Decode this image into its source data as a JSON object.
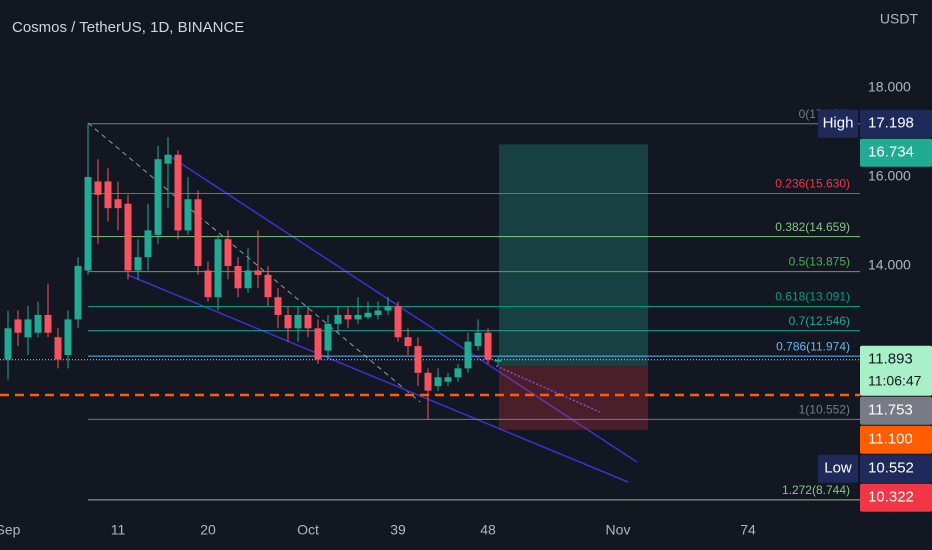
{
  "header": {
    "title": "Cosmos / TetherUS, 1D, BINANCE",
    "currency": "USDT"
  },
  "chart_data": {
    "type": "candlestick",
    "x": [
      0,
      1,
      2,
      3,
      4,
      5,
      6,
      7,
      8,
      9,
      10,
      11,
      12,
      13,
      14,
      15,
      16,
      17,
      18,
      19,
      20,
      21,
      22,
      23,
      24,
      25,
      26,
      27,
      28,
      29,
      30,
      31,
      32,
      33,
      34,
      35,
      36,
      37,
      38,
      39,
      40,
      41,
      42,
      43,
      44,
      45,
      46,
      47,
      48,
      49
    ],
    "open": [
      11.9,
      12.8,
      12.4,
      12.5,
      12.9,
      12.4,
      12.0,
      12.8,
      13.9,
      15.9,
      15.9,
      15.5,
      15.4,
      13.9,
      14.2,
      14.7,
      16.3,
      16.5,
      14.8,
      15.5,
      13.9,
      13.3,
      14.6,
      14.0,
      13.5,
      13.9,
      13.8,
      13.3,
      12.9,
      12.6,
      12.9,
      12.6,
      12.1,
      12.7,
      12.9,
      12.8,
      12.85,
      12.9,
      13.0,
      13.1,
      12.4,
      12.2,
      11.6,
      11.3,
      11.4,
      11.5,
      11.7,
      12.2,
      12.5,
      11.85
    ],
    "high": [
      13.0,
      13.0,
      13.1,
      13.2,
      13.6,
      12.6,
      13.0,
      14.2,
      17.198,
      16.4,
      16.2,
      15.9,
      15.6,
      14.6,
      15.4,
      16.7,
      16.9,
      16.6,
      16.0,
      15.7,
      14.1,
      14.7,
      14.8,
      14.2,
      14.4,
      14.8,
      14.0,
      13.5,
      13.1,
      13.1,
      13.1,
      12.8,
      12.9,
      13.1,
      13.1,
      13.3,
      13.2,
      13.2,
      13.3,
      13.2,
      12.6,
      12.4,
      11.7,
      11.7,
      11.6,
      11.8,
      12.5,
      12.8,
      12.6,
      11.95
    ],
    "low": [
      11.45,
      12.2,
      12.0,
      12.4,
      12.4,
      11.7,
      11.7,
      12.6,
      13.8,
      14.5,
      15.0,
      14.8,
      13.7,
      13.7,
      13.9,
      14.5,
      15.3,
      14.6,
      14.7,
      13.8,
      13.2,
      13.0,
      13.7,
      13.3,
      13.4,
      13.5,
      13.1,
      12.6,
      12.3,
      12.3,
      12.4,
      11.8,
      11.9,
      12.5,
      12.6,
      12.7,
      12.8,
      12.8,
      12.9,
      12.3,
      12.0,
      11.3,
      10.552,
      11.2,
      11.3,
      11.4,
      11.6,
      12.1,
      11.8,
      11.75
    ],
    "close": [
      12.6,
      12.5,
      12.8,
      12.9,
      12.5,
      11.9,
      12.8,
      14.0,
      16.0,
      15.6,
      15.3,
      15.3,
      13.9,
      14.2,
      14.8,
      16.4,
      16.5,
      14.8,
      15.5,
      14.0,
      13.3,
      14.6,
      14.0,
      13.5,
      13.9,
      13.8,
      13.3,
      12.9,
      12.6,
      12.9,
      12.6,
      11.9,
      12.7,
      12.9,
      12.8,
      12.9,
      12.95,
      13.0,
      13.1,
      12.4,
      12.2,
      11.6,
      11.2,
      11.5,
      11.5,
      11.7,
      12.3,
      12.5,
      11.9,
      11.893
    ],
    "up_color": "#22ab94",
    "down_color": "#f7525f",
    "xlim": [
      -0.8,
      85.2
    ],
    "xticks": [
      {
        "value": 0,
        "label": "Sep"
      },
      11,
      20,
      {
        "value": 30,
        "label": "Oct"
      },
      39,
      48,
      {
        "value": 61,
        "label": "Nov"
      },
      74
    ],
    "ylim": [
      8.337,
      19.978
    ],
    "yticks": [
      {
        "value": 18,
        "label": "18.000"
      },
      {
        "value": 16,
        "label": "16.000"
      },
      {
        "value": 14,
        "label": "14.000"
      }
    ],
    "grid": false,
    "fib_levels": [
      {
        "value": 17.198,
        "label": "0(17.198)",
        "color": "#787b86"
      },
      {
        "value": 15.63,
        "label": "0.236(15.630)",
        "color": "#f23645"
      },
      {
        "value": 14.659,
        "label": "0.382(14.659)",
        "color": "#81c784"
      },
      {
        "value": 13.875,
        "label": "0.5(13.875)",
        "color": "#4caf50"
      },
      {
        "value": 13.091,
        "label": "0.618(13.091)",
        "color": "#089981"
      },
      {
        "value": 12.546,
        "label": "0.7(12.546)",
        "color": "#26a69a"
      },
      {
        "value": 11.974,
        "label": "0.786(11.974)",
        "color": "#64b5f6"
      },
      {
        "value": 10.552,
        "label": "1(10.552)",
        "color": "#787b86"
      },
      {
        "value": 8.744,
        "label": "1.272(8.744)",
        "color": "#81c784"
      }
    ],
    "price_badges": [
      {
        "tag": "High",
        "value": 17.198,
        "color": "#1e2a5a"
      },
      {
        "value": 16.734,
        "color": "#22ab94"
      },
      {
        "value": 11.893,
        "countdown": "11:06:47",
        "color": "#a8f0c8",
        "text_color": "#131722"
      },
      {
        "value": 11.753,
        "color": "#787b86"
      },
      {
        "value": 11.1,
        "label": "11.100",
        "color": "#ff5d00"
      },
      {
        "tag": "Low",
        "value": 10.552,
        "color": "#1e2a5a"
      },
      {
        "value": 10.322,
        "color": "#f23645"
      }
    ]
  }
}
